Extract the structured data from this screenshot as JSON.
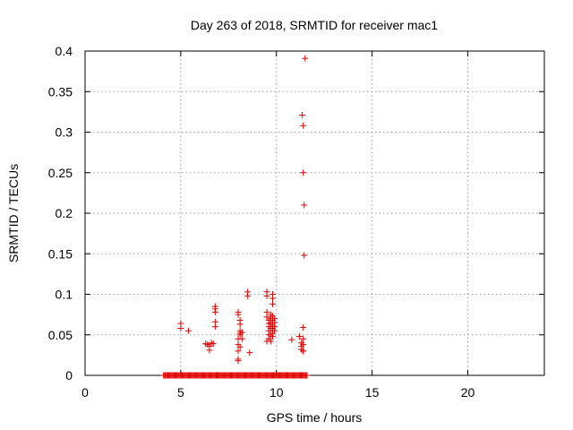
{
  "chart_data": {
    "type": "scatter",
    "title": "Day 263 of 2018, SRMTID for receiver mac1",
    "xlabel": "GPS time / hours",
    "ylabel": "SRMTID / TECUs",
    "xlim": [
      0,
      24
    ],
    "ylim": [
      0,
      0.4
    ],
    "x_ticks": [
      0,
      5,
      10,
      15,
      20
    ],
    "y_ticks": [
      0,
      0.05,
      0.1,
      0.15,
      0.2,
      0.25,
      0.3,
      0.35,
      0.4
    ],
    "x_tick_labels": [
      "0",
      "5",
      "10",
      "15",
      "20"
    ],
    "y_tick_labels": [
      "0",
      "0.05",
      "0.1",
      "0.15",
      "0.2",
      "0.25",
      "0.3",
      "0.35",
      "0.4"
    ],
    "grid": true,
    "marker": "+",
    "color": "#e00000",
    "zero_band": {
      "x_start": 4.1,
      "x_end": 11.6,
      "y": 0
    },
    "series": [
      {
        "points": [
          [
            5.0,
            0.064
          ],
          [
            5.0,
            0.058
          ],
          [
            5.4,
            0.055
          ],
          [
            6.3,
            0.039
          ],
          [
            6.4,
            0.038
          ],
          [
            6.5,
            0.036
          ],
          [
            6.5,
            0.031
          ],
          [
            6.6,
            0.04
          ],
          [
            6.7,
            0.039
          ],
          [
            6.8,
            0.085
          ],
          [
            6.8,
            0.082
          ],
          [
            6.8,
            0.078
          ],
          [
            6.8,
            0.066
          ],
          [
            6.8,
            0.06
          ],
          [
            8.0,
            0.078
          ],
          [
            8.0,
            0.075
          ],
          [
            8.1,
            0.068
          ],
          [
            8.1,
            0.063
          ],
          [
            8.1,
            0.055
          ],
          [
            8.1,
            0.052
          ],
          [
            8.1,
            0.05
          ],
          [
            8.0,
            0.045
          ],
          [
            8.0,
            0.038
          ],
          [
            8.1,
            0.035
          ],
          [
            8.0,
            0.03
          ],
          [
            8.0,
            0.02
          ],
          [
            8.0,
            0.018
          ],
          [
            8.2,
            0.053
          ],
          [
            8.2,
            0.045
          ],
          [
            8.5,
            0.103
          ],
          [
            8.5,
            0.098
          ],
          [
            8.6,
            0.028
          ],
          [
            9.5,
            0.103
          ],
          [
            9.5,
            0.098
          ],
          [
            9.5,
            0.078
          ],
          [
            9.5,
            0.072
          ],
          [
            9.6,
            0.068
          ],
          [
            9.6,
            0.064
          ],
          [
            9.6,
            0.06
          ],
          [
            9.6,
            0.055
          ],
          [
            9.6,
            0.05
          ],
          [
            9.6,
            0.045
          ],
          [
            9.5,
            0.042
          ],
          [
            9.7,
            0.075
          ],
          [
            9.7,
            0.07
          ],
          [
            9.7,
            0.065
          ],
          [
            9.7,
            0.058
          ],
          [
            9.7,
            0.05
          ],
          [
            9.7,
            0.042
          ],
          [
            9.8,
            0.1
          ],
          [
            9.8,
            0.095
          ],
          [
            9.8,
            0.088
          ],
          [
            9.8,
            0.073
          ],
          [
            9.8,
            0.068
          ],
          [
            9.8,
            0.062
          ],
          [
            9.8,
            0.058
          ],
          [
            9.8,
            0.052
          ],
          [
            9.8,
            0.048
          ],
          [
            9.9,
            0.07
          ],
          [
            9.9,
            0.065
          ],
          [
            9.9,
            0.06
          ],
          [
            9.9,
            0.055
          ],
          [
            10.8,
            0.044
          ],
          [
            11.2,
            0.048
          ],
          [
            11.3,
            0.04
          ],
          [
            11.3,
            0.036
          ],
          [
            11.3,
            0.032
          ],
          [
            11.4,
            0.045
          ],
          [
            11.4,
            0.038
          ],
          [
            11.4,
            0.03
          ],
          [
            11.4,
            0.03
          ],
          [
            11.4,
            0.059
          ],
          [
            11.35,
            0.321
          ],
          [
            11.4,
            0.308
          ],
          [
            11.4,
            0.25
          ],
          [
            11.45,
            0.21
          ],
          [
            11.45,
            0.148
          ],
          [
            11.5,
            0.391
          ]
        ]
      }
    ]
  }
}
